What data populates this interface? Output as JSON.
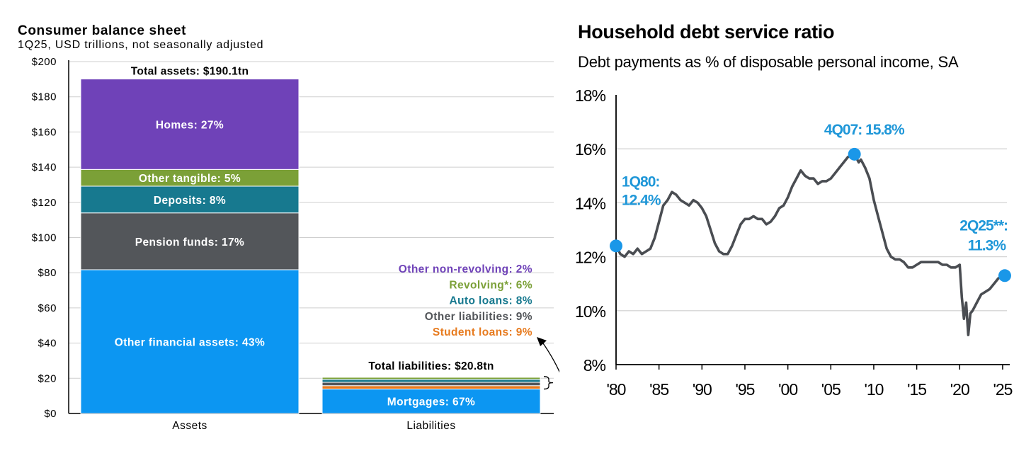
{
  "left_panel": {
    "title": "Consumer balance sheet",
    "subtitle": "1Q25, USD trillions, not seasonally adjusted"
  },
  "right_panel": {
    "title": "Household debt service ratio",
    "subtitle": "Debt payments as % of disposable personal income, SA"
  },
  "colors": {
    "homes": "#6f42b8",
    "other_tangible": "#7ba037",
    "deposits": "#17798f",
    "pension_funds": "#53565a",
    "other_financial": "#0c96f2",
    "mortgages": "#0c96f2",
    "student_loans": "#e77b1f",
    "other_liabilities": "#53565a",
    "auto_loans": "#17798f",
    "revolving": "#7ba037",
    "other_non_revolving": "#6f42b8",
    "line": "#4a4d52",
    "marker": "#1a97e8",
    "annotation": "#1f97d8"
  },
  "chart_data": [
    {
      "type": "bar",
      "stacked": true,
      "title": "Consumer balance sheet",
      "subtitle": "1Q25, USD trillions, not seasonally adjusted",
      "categories": [
        "Assets",
        "Liabilities"
      ],
      "ylim": [
        0,
        200
      ],
      "yticks": [
        0,
        20,
        40,
        60,
        80,
        100,
        120,
        140,
        160,
        180,
        200
      ],
      "ytick_labels": [
        "$0",
        "$20",
        "$40",
        "$60",
        "$80",
        "$100",
        "$120",
        "$140",
        "$160",
        "$180",
        "$200"
      ],
      "assets_total_label": "Total assets: $190.1tn",
      "liabilities_total_label": "Total liabilities: $20.8tn",
      "assets": [
        {
          "key": "other_financial",
          "label": "Other financial assets: 43%",
          "value": 81.7
        },
        {
          "key": "pension_funds",
          "label": "Pension funds: 17%",
          "value": 32.3
        },
        {
          "key": "deposits",
          "label": "Deposits: 8%",
          "value": 15.2
        },
        {
          "key": "other_tangible",
          "label": "Other tangible: 5%",
          "value": 9.5
        },
        {
          "key": "homes",
          "label": "Homes: 27%",
          "value": 51.4
        }
      ],
      "liabilities": [
        {
          "key": "mortgages",
          "label": "Mortgages: 67%",
          "value": 13.9
        },
        {
          "key": "student_loans",
          "label": "Student loans: 9%",
          "value": 1.9
        },
        {
          "key": "other_liabilities",
          "label": "Other liabilities: 9%",
          "value": 1.9
        },
        {
          "key": "auto_loans",
          "label": "Auto loans: 8%",
          "value": 1.7
        },
        {
          "key": "revolving",
          "label": "Revolving*: 6%",
          "value": 1.2
        },
        {
          "key": "other_non_revolving",
          "label": "Other non-revolving: 2%",
          "value": 0.4
        }
      ]
    },
    {
      "type": "line",
      "title": "Household debt service ratio",
      "subtitle": "Debt payments as % of disposable personal income, SA",
      "ylim": [
        8,
        18
      ],
      "yticks": [
        8,
        10,
        12,
        14,
        16,
        18
      ],
      "ytick_labels": [
        "8%",
        "10%",
        "12%",
        "14%",
        "16%",
        "18%"
      ],
      "xlim": [
        1980,
        2025.5
      ],
      "xticks": [
        1980,
        1985,
        1990,
        1995,
        2000,
        2005,
        2010,
        2015,
        2020,
        2025
      ],
      "xtick_labels": [
        "'80",
        "'85",
        "'90",
        "'95",
        "'00",
        "'05",
        "'10",
        "'15",
        "'20",
        "'25"
      ],
      "series": [
        {
          "name": "Debt service ratio",
          "points": [
            [
              1980.0,
              12.4
            ],
            [
              1980.5,
              12.1
            ],
            [
              1981.0,
              12.0
            ],
            [
              1981.5,
              12.2
            ],
            [
              1982.0,
              12.1
            ],
            [
              1982.5,
              12.3
            ],
            [
              1983.0,
              12.1
            ],
            [
              1983.5,
              12.2
            ],
            [
              1984.0,
              12.3
            ],
            [
              1984.5,
              12.7
            ],
            [
              1985.0,
              13.3
            ],
            [
              1985.5,
              13.9
            ],
            [
              1986.0,
              14.1
            ],
            [
              1986.5,
              14.4
            ],
            [
              1987.0,
              14.3
            ],
            [
              1987.5,
              14.1
            ],
            [
              1988.0,
              14.0
            ],
            [
              1988.5,
              13.9
            ],
            [
              1989.0,
              14.1
            ],
            [
              1989.5,
              14.0
            ],
            [
              1990.0,
              13.8
            ],
            [
              1990.5,
              13.5
            ],
            [
              1991.0,
              13.0
            ],
            [
              1991.5,
              12.5
            ],
            [
              1992.0,
              12.2
            ],
            [
              1992.5,
              12.1
            ],
            [
              1993.0,
              12.1
            ],
            [
              1993.5,
              12.4
            ],
            [
              1994.0,
              12.8
            ],
            [
              1994.5,
              13.2
            ],
            [
              1995.0,
              13.4
            ],
            [
              1995.5,
              13.4
            ],
            [
              1996.0,
              13.5
            ],
            [
              1996.5,
              13.4
            ],
            [
              1997.0,
              13.4
            ],
            [
              1997.5,
              13.2
            ],
            [
              1998.0,
              13.3
            ],
            [
              1998.5,
              13.5
            ],
            [
              1999.0,
              13.8
            ],
            [
              1999.5,
              13.9
            ],
            [
              2000.0,
              14.2
            ],
            [
              2000.5,
              14.6
            ],
            [
              2001.0,
              14.9
            ],
            [
              2001.5,
              15.2
            ],
            [
              2002.0,
              15.0
            ],
            [
              2002.5,
              14.9
            ],
            [
              2003.0,
              14.9
            ],
            [
              2003.5,
              14.7
            ],
            [
              2004.0,
              14.8
            ],
            [
              2004.5,
              14.8
            ],
            [
              2005.0,
              14.9
            ],
            [
              2005.5,
              15.1
            ],
            [
              2006.0,
              15.3
            ],
            [
              2006.5,
              15.5
            ],
            [
              2007.0,
              15.7
            ],
            [
              2007.75,
              15.8
            ],
            [
              2008.25,
              15.5
            ],
            [
              2008.5,
              15.6
            ],
            [
              2009.0,
              15.3
            ],
            [
              2009.5,
              14.9
            ],
            [
              2010.0,
              14.1
            ],
            [
              2010.5,
              13.5
            ],
            [
              2011.0,
              12.9
            ],
            [
              2011.5,
              12.3
            ],
            [
              2012.0,
              12.0
            ],
            [
              2012.5,
              11.9
            ],
            [
              2013.0,
              11.9
            ],
            [
              2013.5,
              11.8
            ],
            [
              2014.0,
              11.6
            ],
            [
              2014.5,
              11.6
            ],
            [
              2015.0,
              11.7
            ],
            [
              2015.5,
              11.8
            ],
            [
              2016.0,
              11.8
            ],
            [
              2016.5,
              11.8
            ],
            [
              2017.0,
              11.8
            ],
            [
              2017.5,
              11.8
            ],
            [
              2018.0,
              11.7
            ],
            [
              2018.5,
              11.7
            ],
            [
              2019.0,
              11.6
            ],
            [
              2019.5,
              11.6
            ],
            [
              2020.0,
              11.7
            ],
            [
              2020.25,
              10.5
            ],
            [
              2020.5,
              9.7
            ],
            [
              2020.75,
              10.3
            ],
            [
              2021.0,
              9.1
            ],
            [
              2021.25,
              9.9
            ],
            [
              2021.5,
              10.0
            ],
            [
              2022.0,
              10.3
            ],
            [
              2022.5,
              10.6
            ],
            [
              2023.0,
              10.7
            ],
            [
              2023.5,
              10.8
            ],
            [
              2024.0,
              11.0
            ],
            [
              2024.5,
              11.2
            ],
            [
              2025.0,
              11.3
            ],
            [
              2025.25,
              11.3
            ]
          ]
        }
      ],
      "annotations": [
        {
          "id": "1Q80",
          "label_line1": "1Q80:",
          "label_line2": "12.4%",
          "x": 1980.0,
          "y": 12.4
        },
        {
          "id": "4Q07",
          "label_line1": "4Q07: 15.8%",
          "label_line2": "",
          "x": 2007.75,
          "y": 15.8
        },
        {
          "id": "2Q25",
          "label_line1": "2Q25**:",
          "label_line2": "11.3%",
          "x": 2025.25,
          "y": 11.3
        }
      ]
    }
  ]
}
